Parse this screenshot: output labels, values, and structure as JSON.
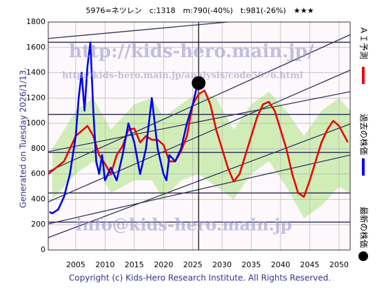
{
  "chart_data": {
    "type": "line",
    "title": "5976=ネツレン　c:1318　m:790(-40%)　t:981(-26%)　★★★",
    "side_note": "Generated on Tuesday 2026/1/13.",
    "footer": "Copyright (c) Kids-Hero Research Institute. All Rights Reserved.",
    "watermarks": [
      "http://kids-hero.main.jp/",
      "http://kids-hero.main.jp/analysis/code5976.html",
      "info@kids-hero.main.jp"
    ],
    "xlim": [
      2000.3,
      2051.9
    ],
    "ylim": [
      0,
      1800
    ],
    "xticks": [
      2005,
      2010,
      2015,
      2020,
      2025,
      2030,
      2035,
      2040,
      2045,
      2050
    ],
    "yticks": [
      0,
      200,
      400,
      600,
      800,
      1000,
      1200,
      1400,
      1600,
      1800
    ],
    "grid": true,
    "series": [
      {
        "name": "過去の株価",
        "color": "#0000ee",
        "x": [
          2000.5,
          2001,
          2002,
          2003,
          2004,
          2005,
          2005.5,
          2006,
          2006.5,
          2007,
          2007.5,
          2008,
          2008.5,
          2009,
          2009.5,
          2010,
          2011,
          2012,
          2013,
          2014,
          2015,
          2016,
          2017,
          2018,
          2018.5,
          2019,
          2020,
          2020.5,
          2021,
          2022,
          2023,
          2024,
          2025,
          2025.5,
          2026
        ],
        "values": [
          300,
          290,
          320,
          420,
          600,
          900,
          1200,
          1400,
          1100,
          1450,
          1640,
          1100,
          700,
          600,
          750,
          550,
          650,
          550,
          750,
          1000,
          850,
          600,
          800,
          1200,
          1000,
          800,
          600,
          550,
          750,
          700,
          800,
          1000,
          1150,
          1250,
          1318
        ]
      },
      {
        "name": "ＡＩ予測",
        "color": "#ee0000",
        "x": [
          2000.3,
          2003,
          2005,
          2007,
          2008,
          2009,
          2010,
          2011,
          2012,
          2013,
          2014,
          2015,
          2016,
          2017,
          2018,
          2019,
          2020,
          2021,
          2022,
          2023,
          2024,
          2025,
          2026,
          2027,
          2028,
          2029,
          2030,
          2031,
          2032,
          2033,
          2034,
          2035,
          2036,
          2037,
          2038,
          2039,
          2040,
          2041,
          2042,
          2043,
          2044,
          2045,
          2046,
          2047,
          2048,
          2049,
          2050,
          2051.5
        ],
        "values": [
          600,
          700,
          900,
          980,
          900,
          750,
          680,
          600,
          750,
          820,
          950,
          960,
          850,
          900,
          870,
          870,
          830,
          700,
          700,
          780,
          900,
          1150,
          1230,
          1260,
          1150,
          950,
          800,
          650,
          540,
          600,
          750,
          900,
          1050,
          1150,
          1170,
          1100,
          950,
          800,
          600,
          450,
          420,
          550,
          700,
          850,
          950,
          1020,
          980,
          850
        ]
      }
    ],
    "latest": {
      "name": "最新の株価",
      "x": 2026,
      "value": 1318,
      "color": "#000000"
    },
    "band": {
      "color": "#99e066",
      "x": [
        2001,
        2005,
        2008,
        2011,
        2015,
        2018,
        2020,
        2023,
        2026,
        2029,
        2032,
        2035,
        2038,
        2041,
        2044,
        2047,
        2050,
        2051.9
      ],
      "upper": [
        800,
        1100,
        1200,
        950,
        1150,
        1200,
        1050,
        1150,
        1250,
        1200,
        950,
        1150,
        1250,
        1100,
        900,
        1100,
        1200,
        1100
      ],
      "lower": [
        400,
        600,
        700,
        450,
        550,
        550,
        400,
        550,
        600,
        500,
        400,
        600,
        700,
        500,
        250,
        350,
        500,
        450
      ]
    },
    "hlines": [
      1640,
      1070,
      770,
      450,
      220
    ],
    "trend_lines": [
      [
        2000.3,
        1670,
        2031,
        1800
      ],
      [
        2000.3,
        620,
        2051.9,
        1700
      ],
      [
        2000.3,
        380,
        2051.9,
        1420
      ],
      [
        2000.3,
        777,
        2051.9,
        1250
      ],
      [
        2000.3,
        206,
        2051.9,
        750
      ],
      [
        2000.3,
        98,
        2051.9,
        995
      ]
    ],
    "vline": 2026
  }
}
